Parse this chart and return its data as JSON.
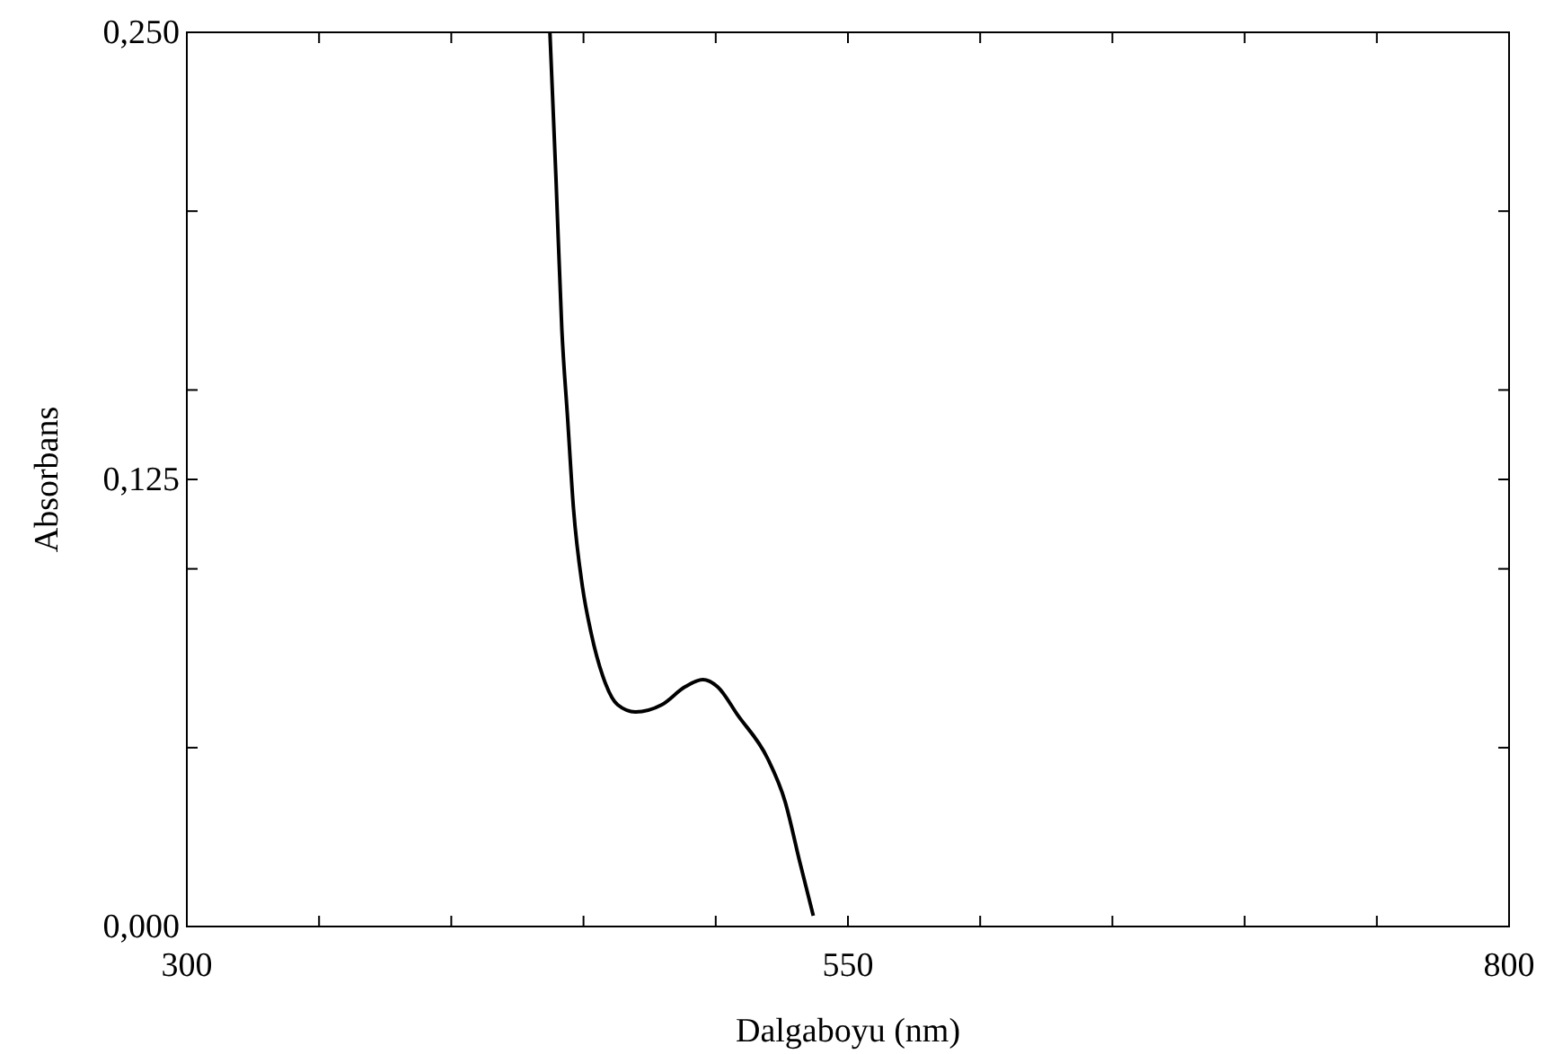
{
  "chart_data": {
    "type": "line",
    "xlabel": "Dalgaboyu (nm)",
    "ylabel": "Absorbans",
    "xlim": [
      300,
      800
    ],
    "ylim": [
      0,
      0.25
    ],
    "xticks": [
      300,
      {
        "value": 350,
        "label": null
      },
      {
        "value": 400,
        "label": null
      },
      {
        "value": 450,
        "label": null
      },
      {
        "value": 500,
        "label": null
      },
      550,
      {
        "value": 600,
        "label": null
      },
      {
        "value": 650,
        "label": null
      },
      {
        "value": 700,
        "label": null
      },
      {
        "value": 750,
        "label": null
      },
      800
    ],
    "yticks": [
      {
        "value": 0,
        "label": "0,000"
      },
      {
        "value": 0.05,
        "label": null
      },
      {
        "value": 0.1,
        "label": null
      },
      {
        "value": 0.125,
        "label": "0,125"
      },
      {
        "value": 0.15,
        "label": null
      },
      {
        "value": 0.2,
        "label": null
      },
      {
        "value": 0.25,
        "label": "0,250"
      }
    ],
    "grid": false,
    "marker": "none",
    "line_style": "solid",
    "series": [
      {
        "color": "#000000",
        "x": [
          437.3,
          439.6,
          441.8,
          444,
          446.2,
          449.6,
          452.9,
          457.3,
          462.9,
          469.6,
          479.6,
          488.4,
          495.1,
          500.7,
          508.4,
          519.6,
          526.2,
          531.8,
          536.9
        ],
        "values": [
          0.25,
          0.209,
          0.167,
          0.142,
          0.117,
          0.095,
          0.082,
          0.07,
          0.062,
          0.06,
          0.062,
          0.067,
          0.069,
          0.067,
          0.059,
          0.047,
          0.035,
          0.018,
          0.003
        ]
      }
    ]
  }
}
